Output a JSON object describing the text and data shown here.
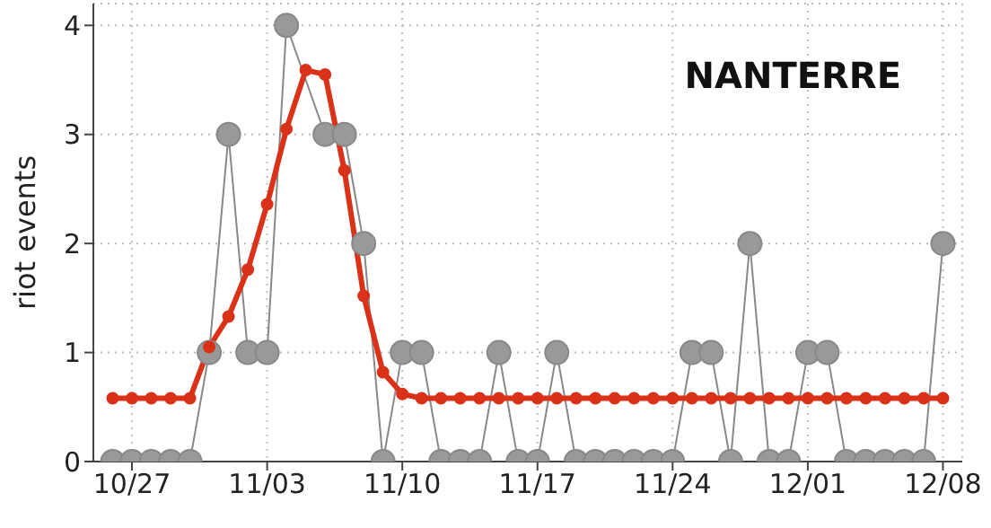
{
  "chart_data": {
    "type": "line",
    "title": "NANTERRE",
    "ylabel": "riot events",
    "x": [
      "--10-26",
      "--10-27",
      "--10-28",
      "--10-29",
      "--10-30",
      "--10-31",
      "--11-01",
      "--11-02",
      "--11-03",
      "--11-04",
      "--11-05",
      "--11-06",
      "--11-07",
      "--11-08",
      "--11-09",
      "--11-10",
      "--11-11",
      "--11-12",
      "--11-13",
      "--11-14",
      "--11-15",
      "--11-16",
      "--11-17",
      "--11-18",
      "--11-19",
      "--11-20",
      "--11-21",
      "--11-22",
      "--11-23",
      "--11-24",
      "--11-25",
      "--11-26",
      "--11-27",
      "--11-28",
      "--11-29",
      "--11-30",
      "--12-01",
      "--12-02",
      "--12-03",
      "--12-04",
      "--12-05",
      "--12-06",
      "--12-07",
      "--12-08"
    ],
    "series": [
      {
        "color": "#999999",
        "values": [
          0,
          0,
          0,
          0,
          0,
          1,
          3,
          1,
          1,
          4,
          null,
          3,
          3,
          2,
          0,
          1,
          1,
          0,
          0,
          0,
          1,
          0,
          0,
          1,
          0,
          0,
          0,
          0,
          0,
          0,
          1,
          1,
          0,
          2,
          0,
          0,
          1,
          1,
          0,
          0,
          0,
          0,
          0,
          2
        ]
      },
      {
        "color": "#d93218",
        "values": [
          0.58,
          0.58,
          0.58,
          0.58,
          0.58,
          1.05,
          1.33,
          1.76,
          2.36,
          3.05,
          3.59,
          3.55,
          2.67,
          1.52,
          0.82,
          0.62,
          0.58,
          0.58,
          0.58,
          0.58,
          0.58,
          0.58,
          0.58,
          0.58,
          0.58,
          0.58,
          0.58,
          0.58,
          0.58,
          0.58,
          0.58,
          0.58,
          0.58,
          0.58,
          0.58,
          0.58,
          0.58,
          0.58,
          0.58,
          0.58,
          0.58,
          0.58,
          0.58,
          0.58
        ]
      }
    ],
    "xlim": [
      "--10-25",
      "--12-09"
    ],
    "xticks": [
      {
        "value": "--10-27",
        "label": "10/27"
      },
      {
        "value": "--11-03",
        "label": "11/03"
      },
      {
        "value": "--11-10",
        "label": "11/10"
      },
      {
        "value": "--11-17",
        "label": "11/17"
      },
      {
        "value": "--11-24",
        "label": "11/24"
      },
      {
        "value": "--12-01",
        "label": "12/01"
      },
      {
        "value": "--12-08",
        "label": "12/08"
      }
    ],
    "ylim": [
      0,
      4.2
    ],
    "yticks": [
      0,
      1,
      2,
      3,
      4
    ],
    "grid": true,
    "marker": "circle",
    "line_style": "solid"
  }
}
